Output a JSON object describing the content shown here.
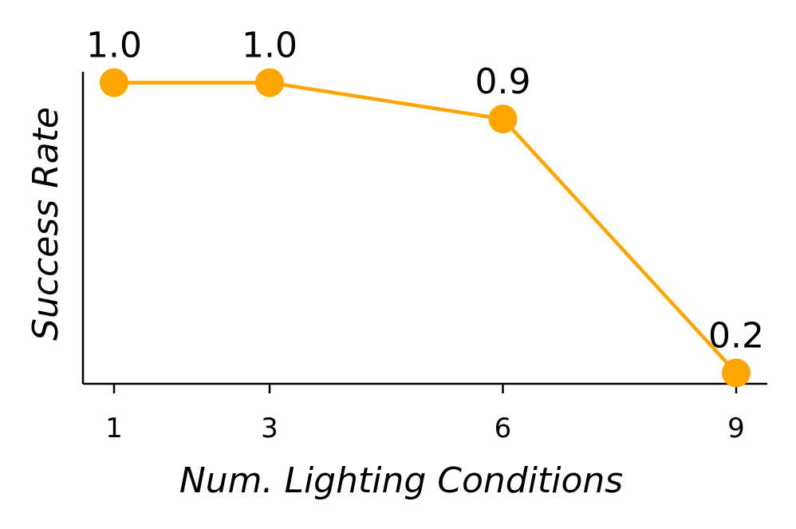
{
  "chart_data": {
    "type": "line",
    "x": [
      1,
      3,
      6,
      9
    ],
    "y": [
      1.0,
      1.0,
      0.9,
      0.2
    ],
    "data_labels": [
      "1.0",
      "1.0",
      "0.9",
      "0.2"
    ],
    "xticks": [
      "1",
      "3",
      "6",
      "9"
    ],
    "xlabel": "Num. Lighting Conditions",
    "ylabel": "Success Rate",
    "xlim": [
      0.6,
      9.4
    ],
    "ylim": [
      0.17,
      1.03
    ],
    "grid": false,
    "color": "#FFA500"
  }
}
